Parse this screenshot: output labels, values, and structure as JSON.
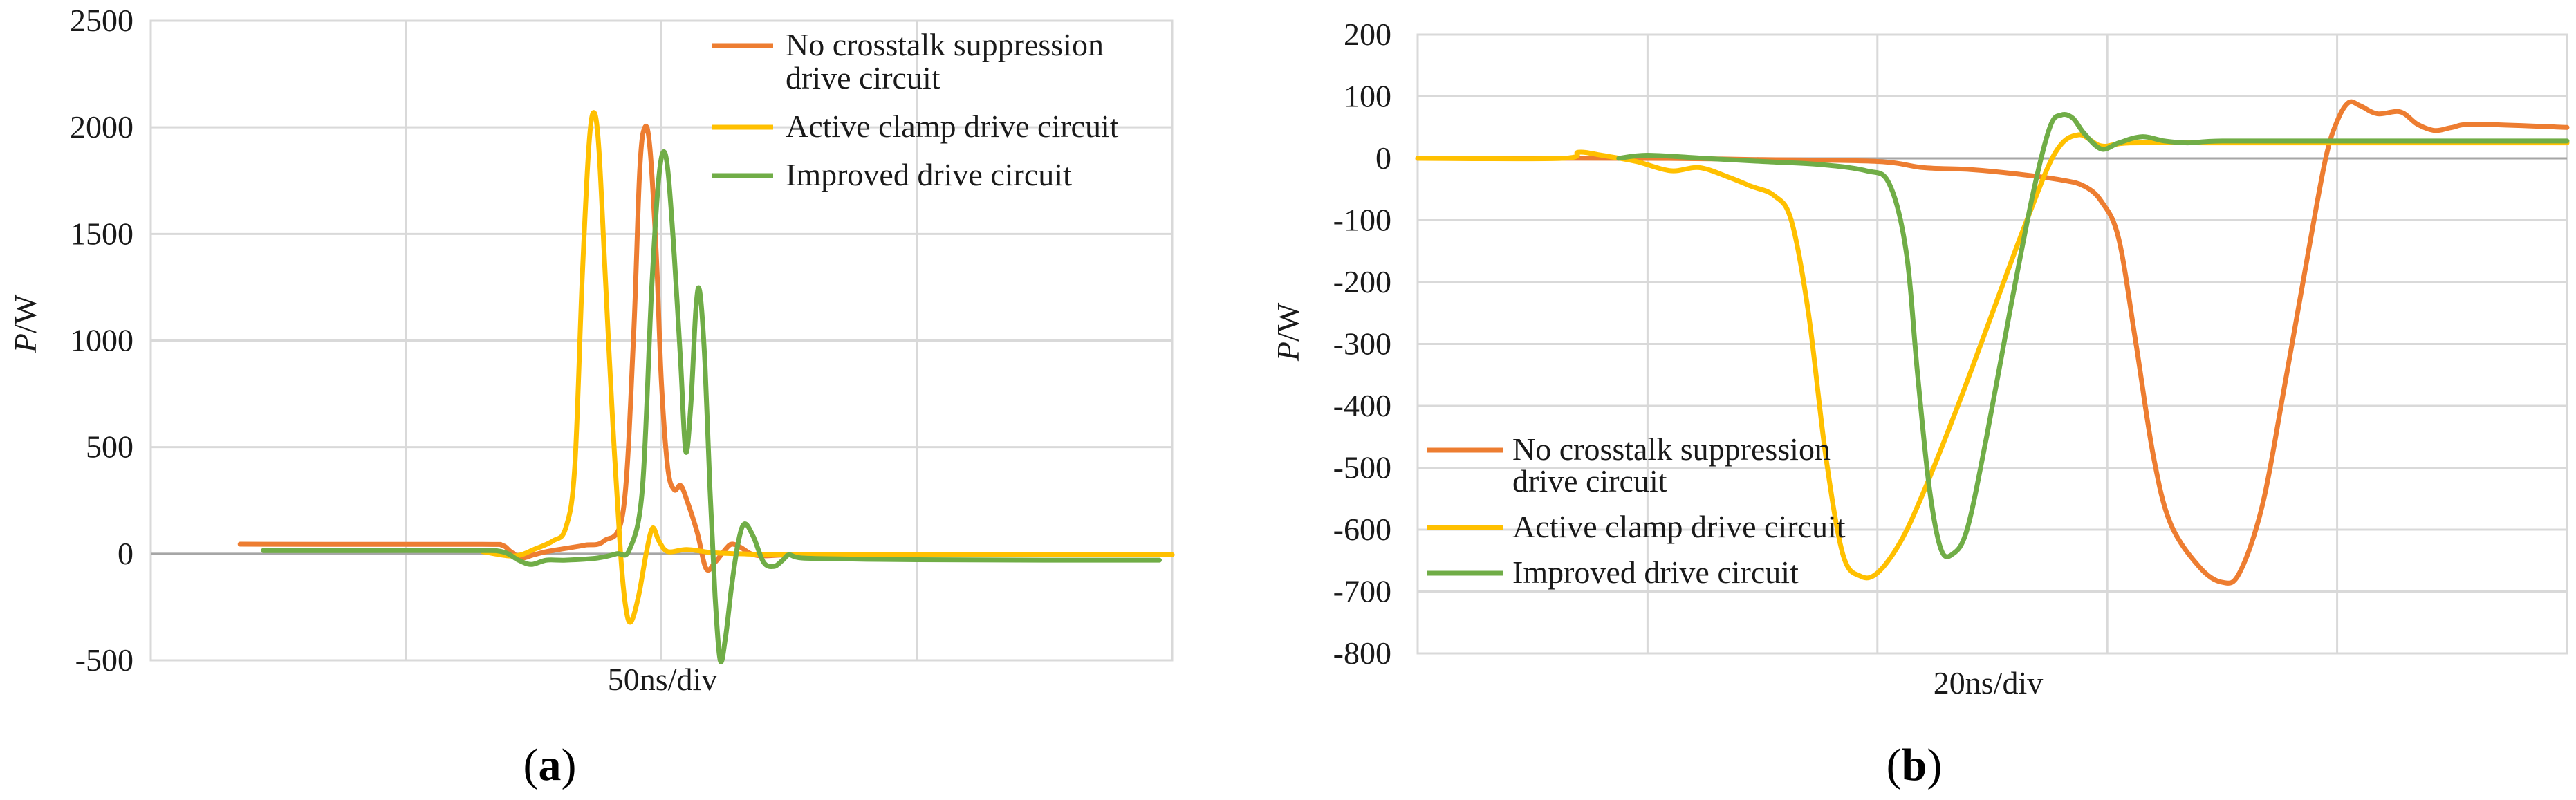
{
  "chart_data": [
    {
      "panel": "a",
      "type": "line",
      "title": "",
      "xlabel": "50ns/div",
      "ylabel": "P/W",
      "ylabel_italic": "P",
      "ylabel_unit": "/W",
      "ylim": [
        -500,
        2500
      ],
      "yticks": [
        2500,
        2000,
        1500,
        1000,
        500,
        0,
        -500
      ],
      "xlim": [
        0,
        8
      ],
      "x_divisions": 4,
      "legend_position": "top-right",
      "series": [
        {
          "name": "No crosstalk suppression drive circuit",
          "legend_lines": [
            "No crosstalk suppression",
            "drive circuit"
          ],
          "color": "#ED7D31",
          "points": [
            [
              0.7,
              45
            ],
            [
              1.5,
              44
            ],
            [
              2.6,
              44
            ],
            [
              2.75,
              40
            ],
            [
              2.82,
              10
            ],
            [
              2.9,
              -20
            ],
            [
              3.0,
              -5
            ],
            [
              3.1,
              10
            ],
            [
              3.25,
              25
            ],
            [
              3.4,
              40
            ],
            [
              3.55,
              60
            ],
            [
              3.7,
              200
            ],
            [
              3.78,
              1000
            ],
            [
              3.83,
              1800
            ],
            [
              3.87,
              2000
            ],
            [
              3.91,
              1900
            ],
            [
              3.96,
              1400
            ],
            [
              4.0,
              800
            ],
            [
              4.05,
              400
            ],
            [
              4.1,
              300
            ],
            [
              4.15,
              320
            ],
            [
              4.2,
              250
            ],
            [
              4.28,
              100
            ],
            [
              4.35,
              -70
            ],
            [
              4.42,
              -40
            ],
            [
              4.5,
              20
            ],
            [
              4.55,
              45
            ],
            [
              4.62,
              30
            ],
            [
              4.7,
              0
            ],
            [
              4.8,
              -10
            ],
            [
              5.0,
              -5
            ],
            [
              5.5,
              -3
            ],
            [
              6.0,
              -5
            ],
            [
              7.0,
              -5
            ],
            [
              8.0,
              -5
            ]
          ]
        },
        {
          "name": "Active clamp drive circuit",
          "legend_lines": [
            "Active clamp drive circuit"
          ],
          "color": "#FFC000",
          "points": [
            [
              2.6,
              10
            ],
            [
              2.8,
              -10
            ],
            [
              2.9,
              -5
            ],
            [
              3.0,
              20
            ],
            [
              3.15,
              60
            ],
            [
              3.25,
              120
            ],
            [
              3.32,
              400
            ],
            [
              3.38,
              1300
            ],
            [
              3.43,
              1900
            ],
            [
              3.47,
              2070
            ],
            [
              3.51,
              1900
            ],
            [
              3.56,
              1300
            ],
            [
              3.62,
              600
            ],
            [
              3.68,
              0
            ],
            [
              3.72,
              -250
            ],
            [
              3.76,
              -320
            ],
            [
              3.82,
              -200
            ],
            [
              3.88,
              0
            ],
            [
              3.93,
              120
            ],
            [
              3.98,
              60
            ],
            [
              4.05,
              10
            ],
            [
              4.2,
              20
            ],
            [
              4.4,
              5
            ],
            [
              4.6,
              0
            ],
            [
              5.0,
              -5
            ],
            [
              6.0,
              -5
            ],
            [
              7.0,
              -5
            ],
            [
              8.0,
              -5
            ]
          ]
        },
        {
          "name": "Improved drive circuit",
          "legend_lines": [
            "Improved drive circuit"
          ],
          "color": "#70AD47",
          "points": [
            [
              0.88,
              15
            ],
            [
              1.5,
              15
            ],
            [
              2.5,
              15
            ],
            [
              2.75,
              10
            ],
            [
              2.88,
              -30
            ],
            [
              2.98,
              -50
            ],
            [
              3.1,
              -30
            ],
            [
              3.25,
              -30
            ],
            [
              3.5,
              -20
            ],
            [
              3.65,
              0
            ],
            [
              3.75,
              20
            ],
            [
              3.85,
              300
            ],
            [
              3.92,
              1200
            ],
            [
              3.97,
              1700
            ],
            [
              4.01,
              1880
            ],
            [
              4.05,
              1800
            ],
            [
              4.1,
              1400
            ],
            [
              4.15,
              900
            ],
            [
              4.19,
              480
            ],
            [
              4.23,
              700
            ],
            [
              4.27,
              1150
            ],
            [
              4.3,
              1230
            ],
            [
              4.34,
              900
            ],
            [
              4.38,
              300
            ],
            [
              4.42,
              -200
            ],
            [
              4.46,
              -500
            ],
            [
              4.5,
              -400
            ],
            [
              4.55,
              -150
            ],
            [
              4.6,
              50
            ],
            [
              4.65,
              140
            ],
            [
              4.72,
              80
            ],
            [
              4.8,
              -40
            ],
            [
              4.88,
              -60
            ],
            [
              4.95,
              -30
            ],
            [
              5.0,
              -5
            ],
            [
              5.1,
              -20
            ],
            [
              5.5,
              -25
            ],
            [
              6.0,
              -28
            ],
            [
              7.0,
              -30
            ],
            [
              7.9,
              -30
            ]
          ]
        }
      ]
    },
    {
      "panel": "b",
      "type": "line",
      "title": "",
      "xlabel": "20ns/div",
      "ylabel": "P/W",
      "ylabel_italic": "P",
      "ylabel_unit": "/W",
      "ylim": [
        -800,
        200
      ],
      "yticks": [
        200,
        100,
        0,
        -100,
        -200,
        -300,
        -400,
        -500,
        -600,
        -700,
        -800
      ],
      "xlim": [
        0,
        10
      ],
      "x_divisions": 5,
      "legend_position": "bottom-left",
      "series": [
        {
          "name": "No crosstalk suppression drive circuit",
          "legend_lines": [
            "No crosstalk suppression",
            "drive circuit"
          ],
          "color": "#ED7D31",
          "points": [
            [
              0.0,
              0
            ],
            [
              2.0,
              0
            ],
            [
              3.0,
              -2
            ],
            [
              4.0,
              -5
            ],
            [
              4.4,
              -15
            ],
            [
              4.8,
              -18
            ],
            [
              5.2,
              -25
            ],
            [
              5.6,
              -35
            ],
            [
              5.8,
              -45
            ],
            [
              5.95,
              -70
            ],
            [
              6.1,
              -130
            ],
            [
              6.25,
              -300
            ],
            [
              6.4,
              -480
            ],
            [
              6.55,
              -590
            ],
            [
              6.8,
              -660
            ],
            [
              7.0,
              -685
            ],
            [
              7.15,
              -670
            ],
            [
              7.35,
              -560
            ],
            [
              7.55,
              -360
            ],
            [
              7.75,
              -150
            ],
            [
              7.9,
              0
            ],
            [
              8.0,
              60
            ],
            [
              8.1,
              90
            ],
            [
              8.2,
              85
            ],
            [
              8.35,
              72
            ],
            [
              8.55,
              75
            ],
            [
              8.7,
              55
            ],
            [
              8.85,
              45
            ],
            [
              9.0,
              50
            ],
            [
              9.2,
              55
            ],
            [
              10.0,
              50
            ]
          ]
        },
        {
          "name": "Active clamp drive circuit",
          "legend_lines": [
            "Active clamp drive circuit"
          ],
          "color": "#FFC000",
          "points": [
            [
              0.0,
              0
            ],
            [
              1.25,
              0
            ],
            [
              1.4,
              10
            ],
            [
              1.6,
              5
            ],
            [
              1.9,
              -5
            ],
            [
              2.2,
              -20
            ],
            [
              2.45,
              -15
            ],
            [
              2.7,
              -30
            ],
            [
              2.9,
              -45
            ],
            [
              3.1,
              -60
            ],
            [
              3.25,
              -100
            ],
            [
              3.4,
              -250
            ],
            [
              3.55,
              -480
            ],
            [
              3.7,
              -640
            ],
            [
              3.85,
              -675
            ],
            [
              4.0,
              -670
            ],
            [
              4.2,
              -620
            ],
            [
              4.4,
              -540
            ],
            [
              4.7,
              -400
            ],
            [
              5.0,
              -250
            ],
            [
              5.3,
              -100
            ],
            [
              5.55,
              10
            ],
            [
              5.75,
              38
            ],
            [
              5.95,
              20
            ],
            [
              6.2,
              25
            ],
            [
              7.0,
              25
            ],
            [
              8.0,
              25
            ],
            [
              10.0,
              25
            ]
          ]
        },
        {
          "name": "Improved drive circuit",
          "legend_lines": [
            "Improved drive circuit"
          ],
          "color": "#70AD47",
          "points": [
            [
              1.75,
              0
            ],
            [
              2.0,
              5
            ],
            [
              2.5,
              0
            ],
            [
              3.0,
              -5
            ],
            [
              3.5,
              -10
            ],
            [
              3.9,
              -20
            ],
            [
              4.1,
              -40
            ],
            [
              4.25,
              -150
            ],
            [
              4.35,
              -350
            ],
            [
              4.45,
              -530
            ],
            [
              4.55,
              -630
            ],
            [
              4.65,
              -640
            ],
            [
              4.78,
              -600
            ],
            [
              4.95,
              -450
            ],
            [
              5.15,
              -250
            ],
            [
              5.35,
              -60
            ],
            [
              5.5,
              50
            ],
            [
              5.6,
              70
            ],
            [
              5.7,
              65
            ],
            [
              5.8,
              40
            ],
            [
              5.95,
              15
            ],
            [
              6.1,
              25
            ],
            [
              6.3,
              35
            ],
            [
              6.5,
              28
            ],
            [
              6.7,
              25
            ],
            [
              7.0,
              28
            ],
            [
              8.0,
              28
            ],
            [
              10.0,
              28
            ]
          ]
        }
      ]
    }
  ],
  "panel_labels": [
    {
      "open": "(",
      "letter": "a",
      "close": ")"
    },
    {
      "open": "(",
      "letter": "b",
      "close": ")"
    }
  ]
}
